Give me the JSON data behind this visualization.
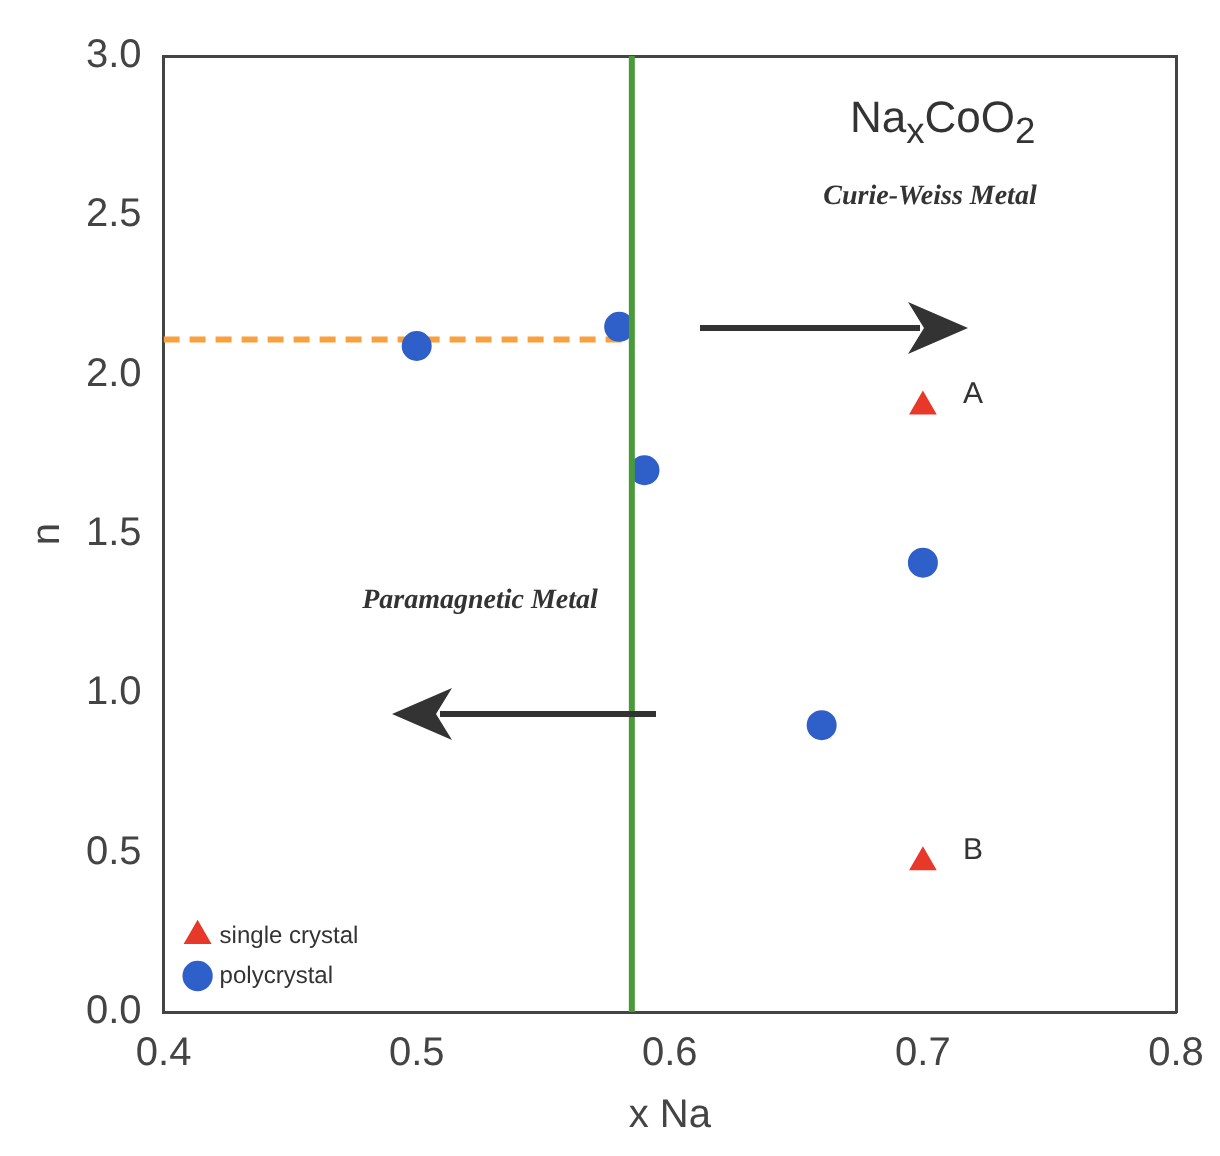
{
  "chart_data": {
    "type": "scatter",
    "xlabel": "x Na",
    "ylabel": "n",
    "xlim": [
      0.4,
      0.8
    ],
    "xticks": [
      {
        "value": 0.4,
        "label": "0.4"
      },
      {
        "value": 0.5,
        "label": "0.5"
      },
      {
        "value": 0.6,
        "label": "0.6"
      },
      {
        "value": 0.7,
        "label": "0.7"
      },
      {
        "value": 0.8,
        "label": "0.8"
      }
    ],
    "ylim": [
      0,
      3
    ],
    "yticks": [
      {
        "value": 0,
        "label": "0.0"
      },
      {
        "value": 0.5,
        "label": "0.5"
      },
      {
        "value": 1,
        "label": "1.0"
      },
      {
        "value": 1.5,
        "label": "1.5"
      },
      {
        "value": 2,
        "label": "2.0"
      },
      {
        "value": 2.5,
        "label": "2.5"
      },
      {
        "value": 3,
        "label": "3.0"
      }
    ],
    "grid": false,
    "legend": "bottom left",
    "series": [
      {
        "name": "single crystal",
        "type": "scatter",
        "marker": "triangle",
        "color": "#e8382a",
        "x": [
          0.7,
          0.7
        ],
        "values": [
          1.9,
          0.47
        ]
      },
      {
        "name": "polycrystal",
        "type": "scatter",
        "marker": "circle",
        "color": "#2f5fc8",
        "x": [
          0.5,
          0.58,
          0.59,
          0.7,
          0.66
        ],
        "values": [
          2.09,
          2.15,
          1.7,
          1.41,
          0.9
        ]
      },
      {
        "type": "line",
        "line_style": "dashed",
        "marker": "none",
        "color": "#f7a03c",
        "x": [
          0.4,
          0.585
        ],
        "values": [
          2.11,
          2.11
        ]
      }
    ],
    "ref_lines": [
      {
        "axis": "x",
        "value": 0.585,
        "color": "#4a9a3a"
      }
    ],
    "annotations": [
      "Na$_{x}$CoO$_{2}$",
      "Curie-Weiss Metal",
      "Paramagnetic Metal",
      {
        "text": "A",
        "x": 0.7,
        "y": 1.9
      },
      {
        "text": "B",
        "x": 0.7,
        "y": 0.47
      }
    ]
  }
}
